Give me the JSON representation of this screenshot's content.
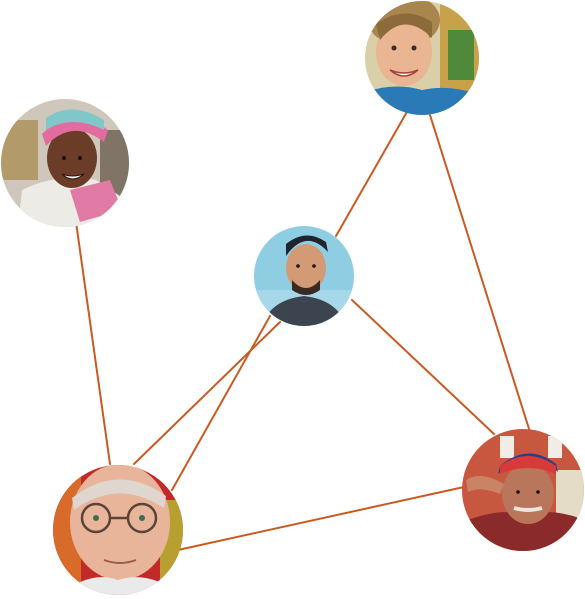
{
  "colors": {
    "edge": "#c95a22",
    "background": "#ffffff"
  },
  "nodes": [
    {
      "id": "woman-blonde",
      "icon": "person-avatar-blonde-woman-smiling"
    },
    {
      "id": "woman-headwrap",
      "icon": "person-avatar-woman-headwrap"
    },
    {
      "id": "man-cap",
      "icon": "person-avatar-young-man-backwards-cap"
    },
    {
      "id": "elderly-woman",
      "icon": "person-avatar-elderly-woman-glasses"
    },
    {
      "id": "elderly-man",
      "icon": "person-avatar-elderly-man-saluting"
    }
  ],
  "edges": [
    {
      "from": "woman-blonde",
      "to": "man-cap"
    },
    {
      "from": "woman-blonde",
      "to": "elderly-man"
    },
    {
      "from": "woman-headwrap",
      "to": "elderly-woman"
    },
    {
      "from": "man-cap",
      "to": "elderly-woman"
    },
    {
      "from": "man-cap",
      "to": "elderly-man"
    },
    {
      "from": "elderly-woman",
      "to": "elderly-man"
    }
  ]
}
